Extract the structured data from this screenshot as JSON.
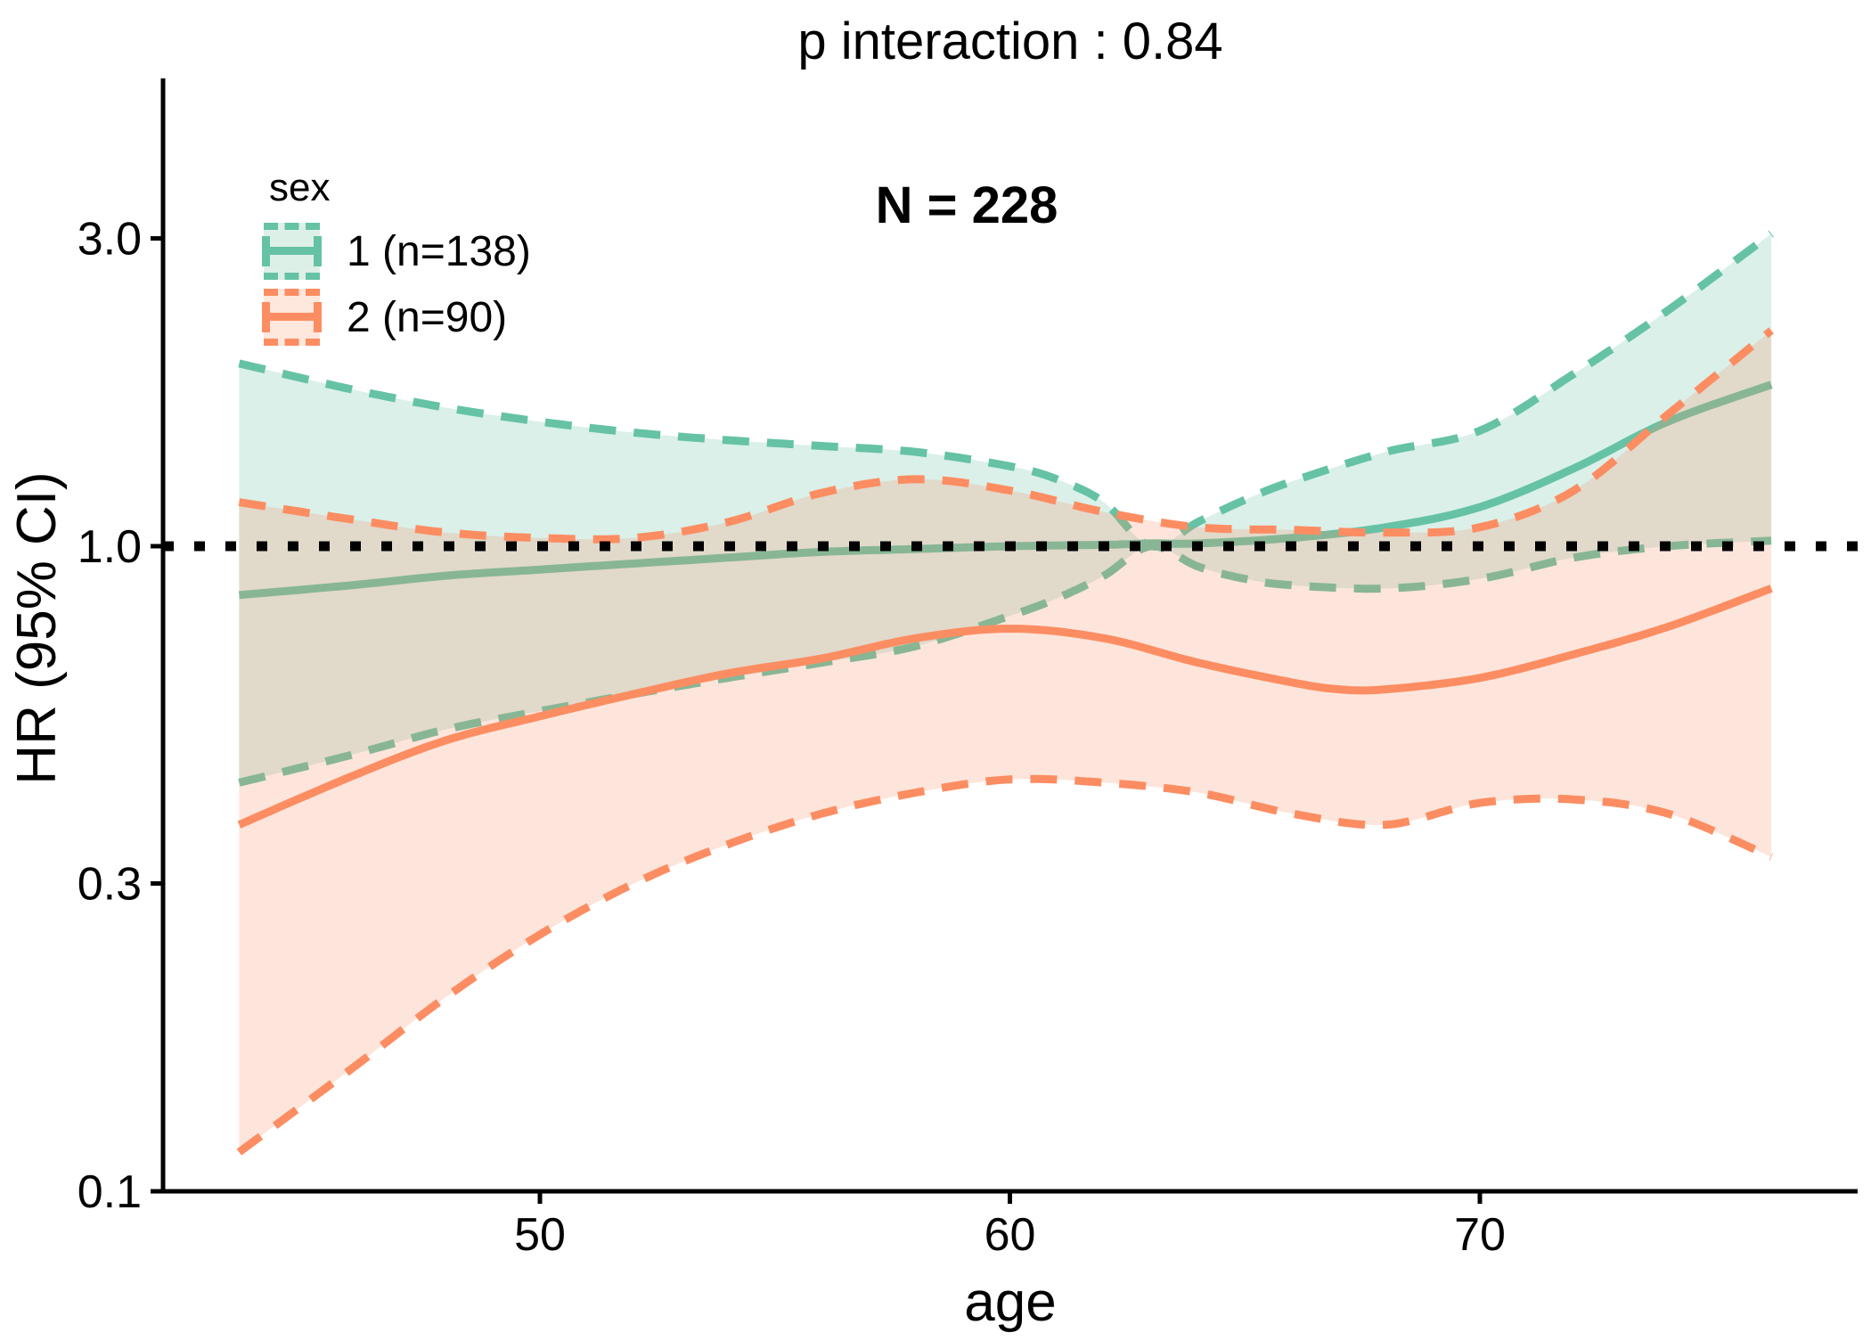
{
  "title": "p interaction : 0.84",
  "annotation": "N = 228",
  "legend": {
    "title": "sex",
    "items": [
      {
        "label": "1 (n=138)",
        "line_color": "#66C2A5",
        "fill_color": "#ddf0e8"
      },
      {
        "label": "2 (n=90)",
        "line_color": "#FC8D62",
        "fill_color": "#fee7dd"
      }
    ]
  },
  "colors": {
    "sex1_line": "#66C2A5",
    "sex2_line": "#FC8D62",
    "sex1_ribbon": "rgba(102,194,165,0.24)",
    "sex2_ribbon": "rgba(252,141,98,0.23)",
    "reference_line": "#000000",
    "axis": "#000000"
  },
  "chart_data": {
    "type": "line",
    "title": "p interaction : 0.84",
    "annotation": "N = 228",
    "xlabel": "age",
    "ylabel": "HR (95% CI)",
    "x_ticks": [
      50,
      60,
      70
    ],
    "y_ticks": [
      0.1,
      0.3,
      1.0,
      3.0
    ],
    "y_scale": "log10",
    "x_range": [
      43.6,
      76.2
    ],
    "y_axis_range": [
      0.1,
      3.4
    ],
    "reference_line_y": 1.0,
    "grid": false,
    "legend_position": "top-left-inside",
    "series": [
      {
        "id": "sex1_hr",
        "name": "sex 1 HR",
        "style": "solid",
        "color": "#66C2A5",
        "x": [
          43.6,
          46,
          48,
          50,
          52,
          54,
          56,
          58,
          60,
          62,
          63,
          64,
          66,
          68,
          70,
          72,
          74,
          76.2
        ],
        "y": [
          0.84,
          0.87,
          0.9,
          0.92,
          0.94,
          0.96,
          0.98,
          0.99,
          1.0,
          1.005,
          1.01,
          1.01,
          1.03,
          1.07,
          1.15,
          1.32,
          1.56,
          1.78
        ]
      },
      {
        "id": "sex1_upper",
        "name": "sex 1 upper 95% CI",
        "style": "dashed",
        "color": "#66C2A5",
        "x": [
          43.6,
          46,
          48,
          50,
          52,
          54,
          56,
          58,
          60,
          61,
          62,
          63,
          64,
          65,
          66,
          68,
          70,
          72,
          74,
          76.2
        ],
        "y": [
          1.92,
          1.75,
          1.64,
          1.56,
          1.5,
          1.46,
          1.43,
          1.4,
          1.33,
          1.27,
          1.17,
          1.0,
          1.09,
          1.18,
          1.26,
          1.4,
          1.51,
          1.85,
          2.32,
          3.05
        ]
      },
      {
        "id": "sex1_lower",
        "name": "sex 1 lower 95% CI",
        "style": "dashed",
        "color": "#66C2A5",
        "x": [
          43.6,
          46,
          48,
          50,
          52,
          54,
          56,
          58,
          60,
          61,
          62,
          63,
          64,
          65,
          66,
          68,
          70,
          72,
          74,
          76.2
        ],
        "y": [
          0.43,
          0.475,
          0.52,
          0.555,
          0.59,
          0.625,
          0.66,
          0.7,
          0.78,
          0.83,
          0.9,
          1.0,
          0.93,
          0.89,
          0.87,
          0.86,
          0.89,
          0.96,
          1.0,
          1.02
        ]
      },
      {
        "id": "sex2_hr",
        "name": "sex 2 HR",
        "style": "solid",
        "color": "#FC8D62",
        "x": [
          43.6,
          46,
          48,
          50,
          52,
          54,
          56,
          58,
          60,
          62,
          64,
          66,
          67,
          68,
          70,
          72,
          74,
          76.2
        ],
        "y": [
          0.37,
          0.44,
          0.5,
          0.545,
          0.59,
          0.635,
          0.67,
          0.72,
          0.745,
          0.72,
          0.66,
          0.615,
          0.6,
          0.6,
          0.625,
          0.68,
          0.75,
          0.86
        ]
      },
      {
        "id": "sex2_upper",
        "name": "sex 2 upper 95% CI",
        "style": "dashed",
        "color": "#FC8D62",
        "x": [
          43.6,
          46,
          48,
          50,
          52,
          54,
          56,
          58,
          60,
          62,
          64,
          66,
          68,
          70,
          72,
          74,
          76.2
        ],
        "y": [
          1.17,
          1.1,
          1.05,
          1.03,
          1.03,
          1.09,
          1.21,
          1.27,
          1.22,
          1.13,
          1.07,
          1.06,
          1.05,
          1.07,
          1.22,
          1.6,
          2.16
        ]
      },
      {
        "id": "sex2_lower",
        "name": "sex 2 lower 95% CI",
        "style": "dashed",
        "color": "#FC8D62",
        "x": [
          43.6,
          46,
          48,
          50,
          52,
          54,
          56,
          58,
          60,
          62,
          64,
          66,
          68,
          70,
          72,
          74,
          76.2
        ],
        "y": [
          0.115,
          0.155,
          0.2,
          0.25,
          0.3,
          0.345,
          0.385,
          0.415,
          0.435,
          0.43,
          0.415,
          0.385,
          0.37,
          0.4,
          0.405,
          0.385,
          0.33
        ]
      }
    ],
    "bands": [
      {
        "id": "sex1_ci_band",
        "upper": "sex1_upper",
        "lower": "sex1_lower",
        "fill": "rgba(102,194,165,0.24)"
      },
      {
        "id": "sex2_ci_band",
        "upper": "sex2_upper",
        "lower": "sex2_lower",
        "fill": "rgba(252,141,98,0.23)"
      }
    ]
  }
}
